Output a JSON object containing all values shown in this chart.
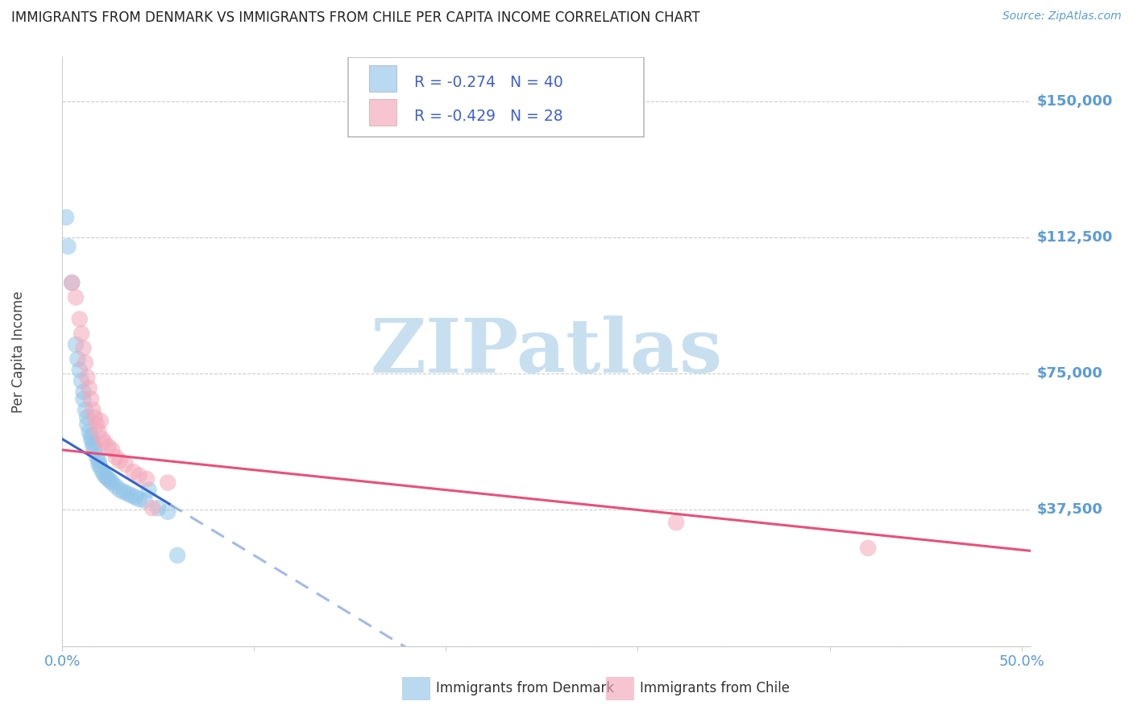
{
  "title": "IMMIGRANTS FROM DENMARK VS IMMIGRANTS FROM CHILE PER CAPITA INCOME CORRELATION CHART",
  "source": "Source: ZipAtlas.com",
  "ylabel": "Per Capita Income",
  "yticks": [
    0,
    37500,
    75000,
    112500,
    150000
  ],
  "ytick_labels": [
    "",
    "$37,500",
    "$75,000",
    "$112,500",
    "$150,000"
  ],
  "ymax": 162000,
  "ymin": 0,
  "xmin": 0.0,
  "xmax": 0.505,
  "legend_denmark": "R = -0.274   N = 40",
  "legend_chile": "R = -0.429   N = 28",
  "legend_label_denmark": "Immigrants from Denmark",
  "legend_label_chile": "Immigrants from Chile",
  "color_denmark": "#92C5E8",
  "color_chile": "#F4A7B9",
  "color_denmark_line": "#3366CC",
  "color_chile_line": "#E8507A",
  "color_axis_text": "#5B9BD5",
  "color_ytick": "#5B9BD5",
  "color_grid": "#CCCCCC",
  "watermark_color": "#C8DFF0",
  "denmark_x": [
    0.002,
    0.003,
    0.005,
    0.007,
    0.008,
    0.009,
    0.01,
    0.011,
    0.011,
    0.012,
    0.013,
    0.013,
    0.014,
    0.015,
    0.015,
    0.016,
    0.016,
    0.017,
    0.018,
    0.019,
    0.019,
    0.02,
    0.021,
    0.022,
    0.023,
    0.024,
    0.025,
    0.026,
    0.028,
    0.03,
    0.032,
    0.034,
    0.036,
    0.038,
    0.04,
    0.043,
    0.045,
    0.05,
    0.055,
    0.06
  ],
  "denmark_y": [
    118000,
    110000,
    100000,
    83000,
    79000,
    76000,
    73000,
    70000,
    68000,
    65000,
    63000,
    61000,
    59000,
    58000,
    57000,
    56000,
    55000,
    54000,
    52000,
    51000,
    50000,
    49000,
    48000,
    47000,
    46500,
    46000,
    45500,
    45000,
    44000,
    43000,
    42500,
    42000,
    41500,
    41000,
    40500,
    40000,
    43000,
    38000,
    37000,
    25000
  ],
  "chile_x": [
    0.005,
    0.007,
    0.009,
    0.01,
    0.011,
    0.012,
    0.013,
    0.014,
    0.015,
    0.016,
    0.017,
    0.018,
    0.019,
    0.02,
    0.021,
    0.022,
    0.024,
    0.026,
    0.028,
    0.03,
    0.033,
    0.037,
    0.04,
    0.044,
    0.047,
    0.055,
    0.32,
    0.42
  ],
  "chile_y": [
    100000,
    96000,
    90000,
    86000,
    82000,
    78000,
    74000,
    71000,
    68000,
    65000,
    63000,
    61000,
    59000,
    62000,
    57000,
    56000,
    55000,
    54000,
    52000,
    51000,
    50000,
    48000,
    47000,
    46000,
    38000,
    45000,
    34000,
    27000
  ]
}
